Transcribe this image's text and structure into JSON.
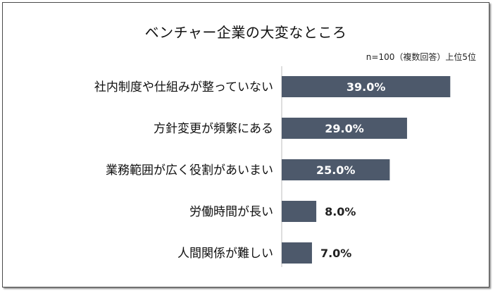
{
  "chart_data": {
    "type": "bar",
    "orientation": "horizontal",
    "title": "ベンチャー企業の大変なところ",
    "subtitle": "n=100（複数回答）上位5位",
    "categories": [
      "社内制度や仕組みが整っていない",
      "方針変更が頻繁にある",
      "業務範囲が広く役割があいまい",
      "労働時間が長い",
      "人間関係が難しい"
    ],
    "values": [
      39.0,
      29.0,
      25.0,
      8.0,
      7.0
    ],
    "value_labels": [
      "39.0%",
      "29.0%",
      "25.0%",
      "8.0%",
      "7.0%"
    ],
    "xlim": [
      0,
      44
    ],
    "bar_color": "#4d596b",
    "label_inside_color": "#ffffff",
    "label_outside_color": "#222222",
    "grid": false,
    "legend": "none"
  }
}
